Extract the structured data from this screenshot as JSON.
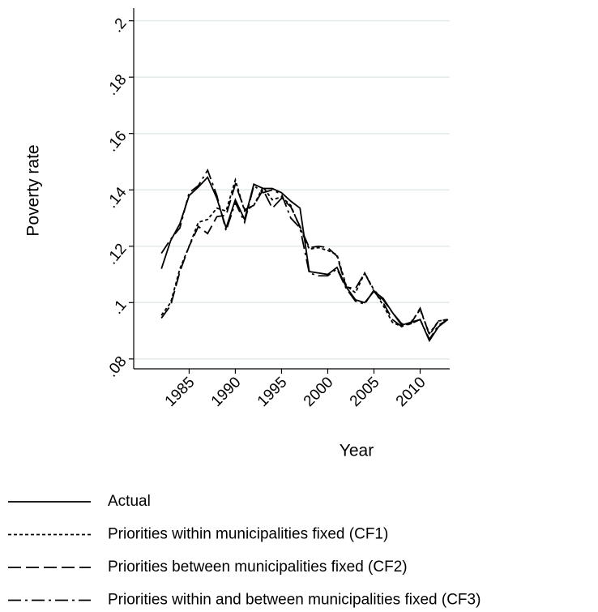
{
  "chart_data": {
    "type": "line",
    "y_label": "Poverty rate",
    "x_label": "Year",
    "x": [
      1982,
      1983,
      1984,
      1985,
      1986,
      1987,
      1988,
      1989,
      1990,
      1991,
      1992,
      1993,
      1994,
      1995,
      1996,
      1997,
      1998,
      1999,
      2000,
      2001,
      2002,
      2003,
      2004,
      2005,
      2006,
      2007,
      2008,
      2009,
      2010,
      2011,
      2012,
      2013
    ],
    "series": [
      {
        "name": "Actual",
        "color": "#000000",
        "dash": "none",
        "values": [
          0.112,
          0.122,
          0.128,
          0.138,
          0.141,
          0.1445,
          0.137,
          0.1265,
          0.1365,
          0.1295,
          0.142,
          0.1405,
          0.1405,
          0.139,
          0.136,
          0.1335,
          0.111,
          0.1105,
          0.11,
          0.1125,
          0.1055,
          0.101,
          0.1,
          0.104,
          0.1015,
          0.0965,
          0.092,
          0.093,
          0.094,
          0.0865,
          0.0915,
          0.094
        ]
      },
      {
        "name": "Priorities within municipalities fixed (CF1)",
        "color": "#000000",
        "dash": "4,3",
        "values": [
          0.0955,
          0.1,
          0.112,
          0.12,
          0.1285,
          0.1295,
          0.1335,
          0.1325,
          0.1435,
          0.1325,
          0.1345,
          0.141,
          0.1365,
          0.1375,
          0.1345,
          0.1265,
          0.119,
          0.1195,
          0.1185,
          0.117,
          0.106,
          0.1035,
          0.1105,
          0.1045,
          0.099,
          0.093,
          0.0915,
          0.093,
          0.0975,
          0.089,
          0.0935,
          0.094
        ]
      },
      {
        "name": "Priorities between municipalities fixed (CF2)",
        "color": "#000000",
        "dash": "16,6",
        "values": [
          0.0945,
          0.099,
          0.111,
          0.12,
          0.127,
          0.1245,
          0.1305,
          0.131,
          0.142,
          0.133,
          0.1345,
          0.14,
          0.1335,
          0.137,
          0.134,
          0.127,
          0.1195,
          0.12,
          0.1195,
          0.1165,
          0.1055,
          0.105,
          0.1105,
          0.104,
          0.1,
          0.094,
          0.0915,
          0.0925,
          0.098,
          0.0885,
          0.0935,
          0.094
        ]
      },
      {
        "name": "Priorities within and between municipalities fixed (CF3)",
        "color": "#000000",
        "dash": "16,5,3,5",
        "values": [
          0.1175,
          0.1225,
          0.1265,
          0.139,
          0.1415,
          0.147,
          0.138,
          0.1255,
          0.1355,
          0.1285,
          0.1415,
          0.139,
          0.14,
          0.1385,
          0.13,
          0.1265,
          0.1105,
          0.1095,
          0.1095,
          0.112,
          0.105,
          0.1005,
          0.0995,
          0.1045,
          0.101,
          0.0965,
          0.0925,
          0.0925,
          0.094,
          0.087,
          0.092,
          0.094
        ]
      }
    ],
    "xlim": [
      1979,
      2013.2
    ],
    "xticks": [
      1985,
      1990,
      1995,
      2000,
      2005,
      2010
    ],
    "ylim": [
      0.0765,
      0.2045
    ],
    "yticks": [
      {
        "value": 0.08,
        "label": ".08"
      },
      {
        "value": 0.1,
        "label": ".1"
      },
      {
        "value": 0.12,
        "label": ".12"
      },
      {
        "value": 0.14,
        "label": ".14"
      },
      {
        "value": 0.16,
        "label": ".16"
      },
      {
        "value": 0.18,
        "label": ".18"
      },
      {
        "value": 0.2,
        "label": ".2"
      }
    ],
    "grid": true,
    "legend": "bottom"
  }
}
